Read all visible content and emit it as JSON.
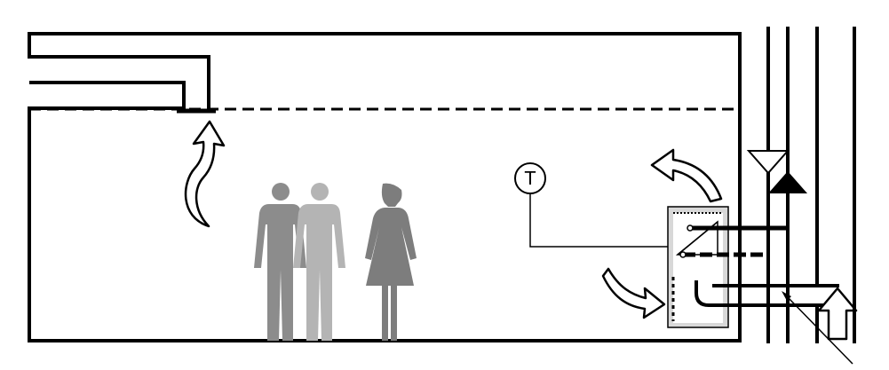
{
  "labels": {
    "thermostat_symbol": "T"
  },
  "colors": {
    "line": "#000000",
    "person_dark": "#8c8c8c",
    "person_light": "#b4b4b4",
    "person_female": "#7d7d7d",
    "unit_fill": "#d8d8d8",
    "background": "#ffffff"
  },
  "icons": [
    "arrow-up-curved-icon",
    "arrow-curved-left-icon",
    "arrow-curved-right-icon",
    "arrow-up-outline-icon",
    "triangle-down-icon",
    "triangle-up-icon",
    "thermostat-icon",
    "person-male-icon",
    "person-female-icon"
  ]
}
